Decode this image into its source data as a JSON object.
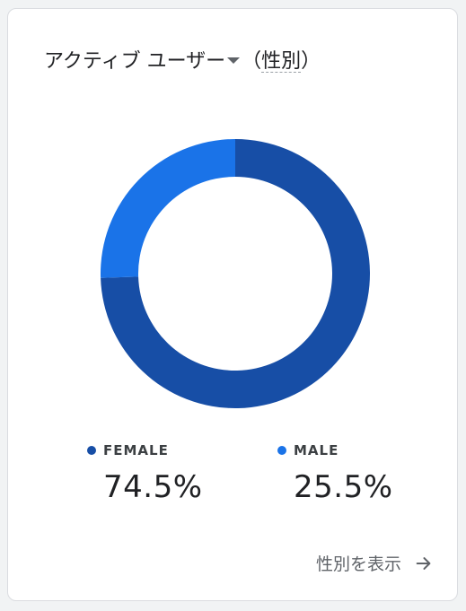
{
  "header": {
    "metric_label": "アクティブ ユーザー",
    "paren_open": "（",
    "dimension_label": "性別",
    "paren_close": "）"
  },
  "chart_data": {
    "type": "pie",
    "donut": true,
    "categories": [
      "FEMALE",
      "MALE"
    ],
    "values": [
      74.5,
      25.5
    ],
    "colors": [
      "#174ea6",
      "#1a73e8"
    ],
    "value_labels": [
      "74.5%",
      "25.5%"
    ],
    "legend_placement": "bottom"
  },
  "footer": {
    "link_label": "性別を表示"
  }
}
